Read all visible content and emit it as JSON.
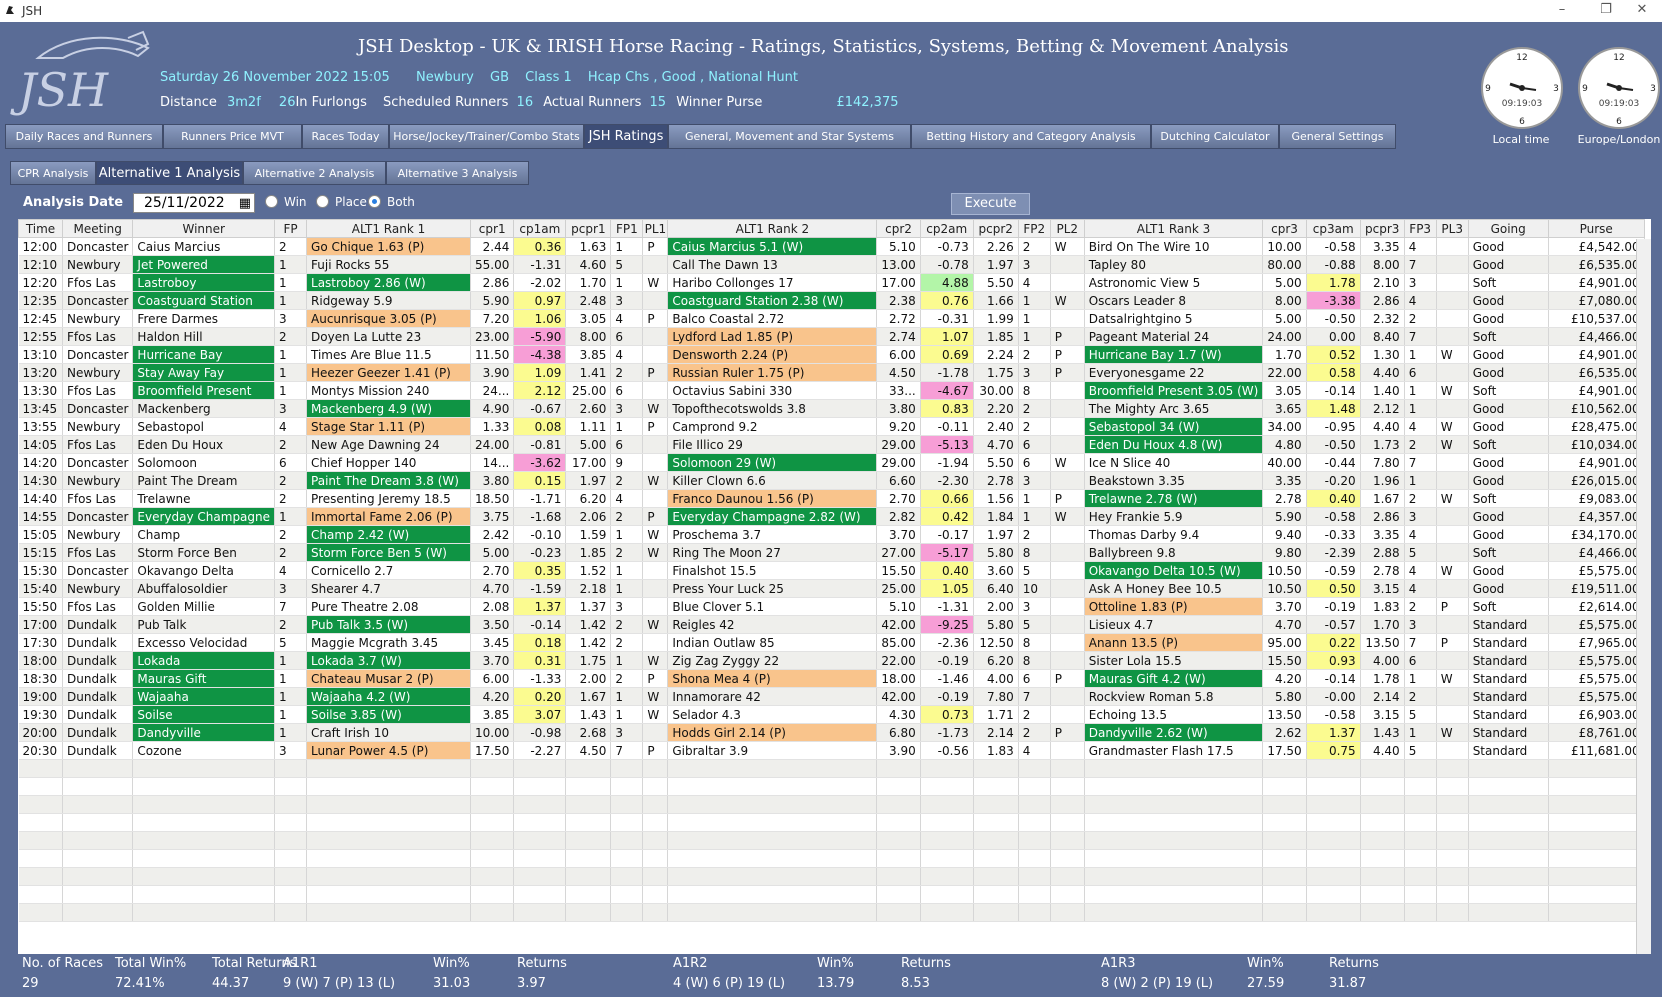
{
  "window": {
    "title": "JSH",
    "min": "–",
    "max": "❐",
    "close": "✕"
  },
  "header": {
    "title": "JSH Desktop - UK & IRISH Horse Racing  -  Ratings, Statistics, Systems, Betting & Movement Analysis",
    "date_time": "Saturday 26 November 2022  15:05",
    "course": "Newbury",
    "country": "GB",
    "class": "Class 1",
    "race_type": "Hcap Chs , Good , National Hunt",
    "distance_label": "Distance",
    "distance": "3m2f",
    "furlongs": "26",
    "furlongs_label": "In Furlongs",
    "sched_label": "Scheduled Runners",
    "sched": "16",
    "actual_label": "Actual Runners",
    "actual": "15",
    "purse_label": "Winner Purse",
    "purse": "£142,375",
    "clock1_label": "Local time",
    "clock1_time": "09:19:03",
    "clock2_label": "Europe/London",
    "clock2_time": "09:19:03"
  },
  "tabs": [
    "Daily Races and Runners",
    "Runners Price MVT",
    "Races Today",
    "Horse/Jockey/Trainer/Combo Stats",
    "JSH Ratings",
    "General, Movement and Star Systems",
    "Betting History and Category Analysis",
    "Dutching Calculator",
    "General Settings"
  ],
  "subtabs": [
    "CPR Analysis",
    "Alternative 1 Analysis",
    "Alternative 2 Analysis",
    "Alternative 3 Analysis"
  ],
  "controls": {
    "analysis_label": "Analysis Date",
    "date": "25/11/2022",
    "win": "Win",
    "place": "Place",
    "both": "Both",
    "execute": "Execute"
  },
  "columns": [
    "Time",
    "Meeting",
    "Winner",
    "FP",
    "ALT1 Rank 1",
    "cpr1",
    "cp1am",
    "pcpr1",
    "FP1",
    "PL1",
    "ALT1 Rank 2",
    "cpr2",
    "cp2am",
    "pcpr2",
    "FP2",
    "PL2",
    "ALT1 Rank 3",
    "cpr3",
    "cp3am",
    "pcpr3",
    "FP3",
    "PL3",
    "Going",
    "Purse"
  ],
  "rows": [
    [
      "12:00",
      "Doncaster",
      "Caius Marcius",
      "2",
      "Go Chique 1.63 (P)",
      "2.44",
      "0.36",
      "1.63",
      "1",
      "P",
      "Caius Marcius 5.1 (W)",
      "5.10",
      "-0.73",
      "2.26",
      "2",
      "W",
      "Bird On The Wire 10",
      "10.00",
      "-0.58",
      "3.35",
      "4",
      "",
      "Good",
      "£4,542.00"
    ],
    [
      "12:10",
      "Newbury",
      "Jet Powered",
      "1",
      "Fuji Rocks 55",
      "55.00",
      "-1.31",
      "4.60",
      "5",
      "",
      "Call The Dawn 13",
      "13.00",
      "-0.78",
      "1.97",
      "3",
      "",
      "Tapley 80",
      "80.00",
      "-0.88",
      "8.00",
      "7",
      "",
      "Good",
      "£6,535.00"
    ],
    [
      "12:20",
      "Ffos Las",
      "Lastroboy",
      "1",
      "Lastroboy 2.86 (W)",
      "2.86",
      "-2.02",
      "1.70",
      "1",
      "W",
      "Haribo Collonges 17",
      "17.00",
      "4.88",
      "5.50",
      "4",
      "",
      "Astronomic View 5",
      "5.00",
      "1.78",
      "2.10",
      "3",
      "",
      "Soft",
      "£4,901.00"
    ],
    [
      "12:35",
      "Doncaster",
      "Coastguard Station",
      "1",
      "Ridgeway 5.9",
      "5.90",
      "0.97",
      "2.48",
      "3",
      "",
      "Coastguard Station 2.38 (W)",
      "2.38",
      "0.76",
      "1.66",
      "1",
      "W",
      "Oscars Leader 8",
      "8.00",
      "-3.38",
      "2.86",
      "4",
      "",
      "Good",
      "£7,080.00"
    ],
    [
      "12:45",
      "Newbury",
      "Frere Darmes",
      "3",
      "Aucunrisque 3.05 (P)",
      "7.20",
      "1.06",
      "3.05",
      "4",
      "P",
      "Balco Coastal 2.72",
      "2.72",
      "-0.31",
      "1.99",
      "1",
      "",
      "Datsalrightgino 5",
      "5.00",
      "-0.50",
      "2.32",
      "2",
      "",
      "Good",
      "£10,537.00"
    ],
    [
      "12:55",
      "Ffos Las",
      "Haldon Hill",
      "2",
      "Doyen La Lutte 23",
      "23.00",
      "-5.90",
      "8.00",
      "6",
      "",
      "Lydford Lad 1.85 (P)",
      "2.74",
      "1.07",
      "1.85",
      "1",
      "P",
      "Pageant Material 24",
      "24.00",
      "0.00",
      "8.40",
      "7",
      "",
      "Soft",
      "£4,466.00"
    ],
    [
      "13:10",
      "Doncaster",
      "Hurricane Bay",
      "1",
      "Times Are Blue 11.5",
      "11.50",
      "-4.38",
      "3.85",
      "4",
      "",
      "Densworth 2.24 (P)",
      "6.00",
      "0.69",
      "2.24",
      "2",
      "P",
      "Hurricane Bay 1.7 (W)",
      "1.70",
      "0.52",
      "1.30",
      "1",
      "W",
      "Good",
      "£4,901.00"
    ],
    [
      "13:20",
      "Newbury",
      "Stay Away Fay",
      "1",
      "Heezer Geezer 1.41 (P)",
      "3.90",
      "1.09",
      "1.41",
      "2",
      "P",
      "Russian Ruler 1.75 (P)",
      "4.50",
      "-1.78",
      "1.75",
      "3",
      "P",
      "Everyonesgame 22",
      "22.00",
      "0.58",
      "4.40",
      "6",
      "",
      "Good",
      "£6,535.00"
    ],
    [
      "13:30",
      "Ffos Las",
      "Broomfield Present",
      "1",
      "Montys Mission 240",
      "24...",
      "2.12",
      "25.00",
      "6",
      "",
      "Octavius Sabini 330",
      "33...",
      "-4.67",
      "30.00",
      "8",
      "",
      "Broomfield Present 3.05 (W)",
      "3.05",
      "-0.14",
      "1.40",
      "1",
      "W",
      "Soft",
      "£4,901.00"
    ],
    [
      "13:45",
      "Doncaster",
      "Mackenberg",
      "3",
      "Mackenberg 4.9 (W)",
      "4.90",
      "-0.67",
      "2.60",
      "3",
      "W",
      "Topofthecotswolds 3.8",
      "3.80",
      "0.83",
      "2.20",
      "2",
      "",
      "The Mighty Arc 3.65",
      "3.65",
      "1.48",
      "2.12",
      "1",
      "",
      "Good",
      "£10,562.00"
    ],
    [
      "13:55",
      "Newbury",
      "Sebastopol",
      "4",
      "Stage Star 1.11 (P)",
      "1.33",
      "0.08",
      "1.11",
      "1",
      "P",
      "Camprond 9.2",
      "9.20",
      "-0.11",
      "2.40",
      "2",
      "",
      "Sebastopol 34 (W)",
      "34.00",
      "-0.95",
      "4.40",
      "4",
      "W",
      "Good",
      "£28,475.00"
    ],
    [
      "14:05",
      "Ffos Las",
      "Eden Du Houx",
      "2",
      "New Age Dawning 24",
      "24.00",
      "-0.81",
      "5.00",
      "6",
      "",
      "File Illico 29",
      "29.00",
      "-5.13",
      "4.70",
      "6",
      "",
      "Eden Du Houx 4.8 (W)",
      "4.80",
      "-0.50",
      "1.73",
      "2",
      "W",
      "Soft",
      "£10,034.00"
    ],
    [
      "14:20",
      "Doncaster",
      "Solomoon",
      "6",
      "Chief Hopper 140",
      "14...",
      "-3.62",
      "17.00",
      "9",
      "",
      "Solomoon 29 (W)",
      "29.00",
      "-1.94",
      "5.50",
      "6",
      "W",
      "Ice N Slice 40",
      "40.00",
      "-0.44",
      "7.80",
      "7",
      "",
      "Good",
      "£4,901.00"
    ],
    [
      "14:30",
      "Newbury",
      "Paint The Dream",
      "2",
      "Paint The Dream 3.8 (W)",
      "3.80",
      "0.15",
      "1.97",
      "2",
      "W",
      "Killer Clown 6.6",
      "6.60",
      "-2.30",
      "2.78",
      "3",
      "",
      "Beakstown 3.35",
      "3.35",
      "-0.20",
      "1.96",
      "1",
      "",
      "Good",
      "£26,015.00"
    ],
    [
      "14:40",
      "Ffos Las",
      "Trelawne",
      "2",
      "Presenting Jeremy 18.5",
      "18.50",
      "-1.71",
      "6.20",
      "4",
      "",
      "Franco Daunou 1.56 (P)",
      "2.70",
      "0.66",
      "1.56",
      "1",
      "P",
      "Trelawne 2.78 (W)",
      "2.78",
      "0.40",
      "1.67",
      "2",
      "W",
      "Soft",
      "£9,083.00"
    ],
    [
      "14:55",
      "Doncaster",
      "Everyday Champagne",
      "1",
      "Immortal Fame 2.06 (P)",
      "3.75",
      "-1.68",
      "2.06",
      "2",
      "P",
      "Everyday Champagne 2.82 (W)",
      "2.82",
      "0.42",
      "1.84",
      "1",
      "W",
      "Hey Frankie 5.9",
      "5.90",
      "-0.58",
      "2.86",
      "3",
      "",
      "Good",
      "£4,357.00"
    ],
    [
      "15:05",
      "Newbury",
      "Champ",
      "2",
      "Champ 2.42 (W)",
      "2.42",
      "-0.10",
      "1.59",
      "1",
      "W",
      "Proschema 3.7",
      "3.70",
      "-0.17",
      "1.97",
      "2",
      "",
      "Thomas Darby 9.4",
      "9.40",
      "-0.33",
      "3.35",
      "4",
      "",
      "Good",
      "£34,170.00"
    ],
    [
      "15:15",
      "Ffos Las",
      "Storm Force Ben",
      "2",
      "Storm Force Ben 5 (W)",
      "5.00",
      "-0.23",
      "1.85",
      "2",
      "W",
      "Ring The Moon 27",
      "27.00",
      "-5.17",
      "5.80",
      "8",
      "",
      "Ballybreen 9.8",
      "9.80",
      "-2.39",
      "2.88",
      "5",
      "",
      "Soft",
      "£4,466.00"
    ],
    [
      "15:30",
      "Doncaster",
      "Okavango Delta",
      "4",
      "Cornicello 2.7",
      "2.70",
      "0.35",
      "1.52",
      "1",
      "",
      "Finalshot 15.5",
      "15.50",
      "0.40",
      "3.60",
      "5",
      "",
      "Okavango Delta 10.5 (W)",
      "10.50",
      "-0.59",
      "2.78",
      "4",
      "W",
      "Good",
      "£5,575.00"
    ],
    [
      "15:40",
      "Newbury",
      "Abuffalosoldier",
      "3",
      "Shearer 4.7",
      "4.70",
      "-1.59",
      "2.18",
      "1",
      "",
      "Press Your Luck 25",
      "25.00",
      "1.05",
      "6.40",
      "10",
      "",
      "Ask A Honey Bee 10.5",
      "10.50",
      "0.50",
      "3.15",
      "4",
      "",
      "Good",
      "£19,511.00"
    ],
    [
      "15:50",
      "Ffos Las",
      "Golden Millie",
      "7",
      "Pure Theatre 2.08",
      "2.08",
      "1.37",
      "1.37",
      "3",
      "",
      "Blue Clover 5.1",
      "5.10",
      "-1.31",
      "2.00",
      "3",
      "",
      "Ottoline 1.83 (P)",
      "3.70",
      "-0.19",
      "1.83",
      "2",
      "P",
      "Soft",
      "£2,614.00"
    ],
    [
      "17:00",
      "Dundalk",
      "Pub Talk",
      "2",
      "Pub Talk 3.5 (W)",
      "3.50",
      "-0.14",
      "1.42",
      "2",
      "W",
      "Reigles 42",
      "42.00",
      "-9.25",
      "5.80",
      "5",
      "",
      "Lisieux 4.7",
      "4.70",
      "-0.57",
      "1.70",
      "3",
      "",
      "Standard",
      "£5,575.00"
    ],
    [
      "17:30",
      "Dundalk",
      "Excesso Velocidad",
      "5",
      "Maggie Mcgrath 3.45",
      "3.45",
      "0.18",
      "1.42",
      "2",
      "",
      "Indian Outlaw 85",
      "85.00",
      "-2.36",
      "12.50",
      "8",
      "",
      "Anann 13.5 (P)",
      "95.00",
      "0.22",
      "13.50",
      "7",
      "P",
      "Standard",
      "£7,965.00"
    ],
    [
      "18:00",
      "Dundalk",
      "Lokada",
      "1",
      "Lokada 3.7 (W)",
      "3.70",
      "0.31",
      "1.75",
      "1",
      "W",
      "Zig Zag Zyggy 22",
      "22.00",
      "-0.19",
      "6.20",
      "8",
      "",
      "Sister Lola 15.5",
      "15.50",
      "0.93",
      "4.00",
      "6",
      "",
      "Standard",
      "£5,575.00"
    ],
    [
      "18:30",
      "Dundalk",
      "Mauras Gift",
      "1",
      "Chateau Musar 2 (P)",
      "6.00",
      "-1.33",
      "2.00",
      "2",
      "P",
      "Shona Mea 4 (P)",
      "18.00",
      "-1.46",
      "4.00",
      "6",
      "P",
      "Mauras Gift 4.2 (W)",
      "4.20",
      "-0.14",
      "1.78",
      "1",
      "W",
      "Standard",
      "£5,575.00"
    ],
    [
      "19:00",
      "Dundalk",
      "Wajaaha",
      "1",
      "Wajaaha 4.2 (W)",
      "4.20",
      "0.20",
      "1.67",
      "1",
      "W",
      "Innamorare 42",
      "42.00",
      "-0.19",
      "7.80",
      "7",
      "",
      "Rockview Roman 5.8",
      "5.80",
      "-0.00",
      "2.14",
      "2",
      "",
      "Standard",
      "£5,575.00"
    ],
    [
      "19:30",
      "Dundalk",
      "Soilse",
      "1",
      "Soilse 3.85 (W)",
      "3.85",
      "3.07",
      "1.43",
      "1",
      "W",
      "Selador 4.3",
      "4.30",
      "0.73",
      "1.71",
      "2",
      "",
      "Echoing 13.5",
      "13.50",
      "-0.58",
      "3.15",
      "5",
      "",
      "Standard",
      "£6,903.00"
    ],
    [
      "20:00",
      "Dundalk",
      "Dandyville",
      "1",
      "Craft Irish 10",
      "10.00",
      "-0.98",
      "2.68",
      "3",
      "",
      "Hodds Girl 2.14 (P)",
      "6.80",
      "-1.73",
      "2.14",
      "2",
      "P",
      "Dandyville 2.62 (W)",
      "2.62",
      "1.37",
      "1.43",
      "1",
      "W",
      "Standard",
      "£8,761.00"
    ],
    [
      "20:30",
      "Dundalk",
      "Cozone",
      "3",
      "Lunar Power 4.5 (P)",
      "17.50",
      "-2.27",
      "4.50",
      "7",
      "P",
      "Gibraltar 3.9",
      "3.90",
      "-0.56",
      "1.83",
      "4",
      "",
      "Grandmaster Flash 17.5",
      "17.50",
      "0.75",
      "4.40",
      "5",
      "",
      "Standard",
      "£11,681.00"
    ]
  ],
  "colors": {
    "win": "#0f9444",
    "place": "#f9c48c",
    "positive": "#fbfb90",
    "negative": "#f79ed6",
    "strong_positive": "#b3f5a8"
  },
  "footer": {
    "races_label": "No. of Races",
    "races": "29",
    "total_win_label": "Total Win%",
    "total_win": "72.41%",
    "total_ret_label": "Total Returns",
    "total_ret": "44.37",
    "a1r1_label": "A1R1",
    "a1r1": "9 (W) 7 (P) 13 (L)",
    "a1r1_win": "31.03",
    "a1r1_ret": "3.97",
    "a1r2_label": "A1R2",
    "a1r2": "4 (W) 6 (P) 19 (L)",
    "a1r2_win": "13.79",
    "a1r2_ret": "8.53",
    "a1r3_label": "A1R3",
    "a1r3": "8 (W) 2 (P) 19 (L)",
    "a1r3_win": "27.59",
    "a1r3_ret": "31.87",
    "win_label": "Win%",
    "ret_label": "Returns"
  }
}
